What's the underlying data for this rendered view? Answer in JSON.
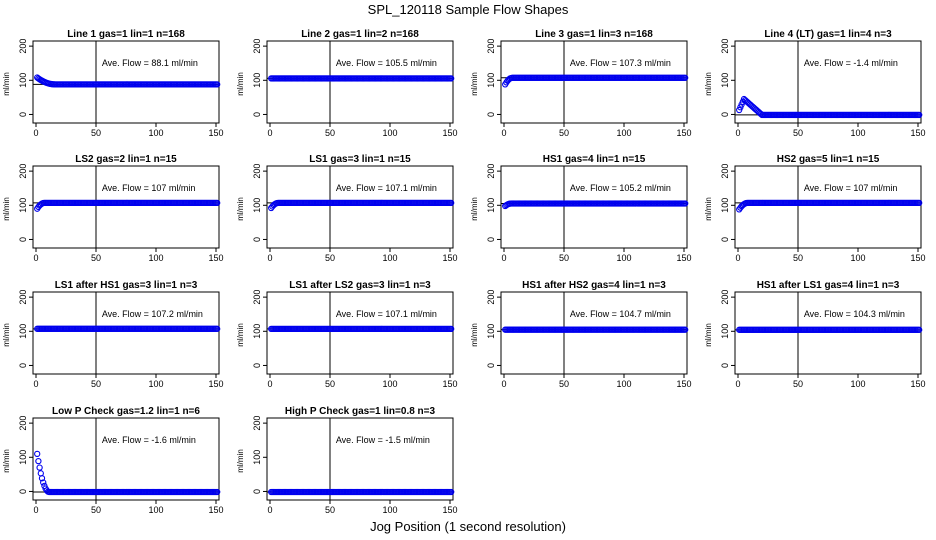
{
  "page": {
    "title": "SPL_120118  Sample Flow Shapes",
    "xlabel": "Jog Position (1 second resolution)"
  },
  "colors": {
    "points": "#0000ee",
    "axes": "#000000"
  },
  "chart_data": [
    {
      "type": "scatter",
      "title": "Line 1 gas=1 lin=1 n=168",
      "ylabel": "ml/min",
      "annotation": "Ave. Flow =  88.1  ml/min",
      "xlim": [
        0,
        150
      ],
      "ylim": [
        0,
        200
      ],
      "xticks": [
        0,
        50,
        100,
        150
      ],
      "yticks": [
        0,
        100,
        200
      ],
      "hline": 88.1,
      "vline": 50,
      "shape": {
        "start": 108,
        "end": 88.1,
        "transition": 15,
        "mode": "decay"
      }
    },
    {
      "type": "scatter",
      "title": "Line 2 gas=1 lin=2 n=168",
      "ylabel": "ml/min",
      "annotation": "Ave. Flow =  105.5  ml/min",
      "xlim": [
        0,
        150
      ],
      "ylim": [
        0,
        200
      ],
      "xticks": [
        0,
        50,
        100,
        150
      ],
      "yticks": [
        0,
        100,
        200
      ],
      "hline": 105.5,
      "vline": 50,
      "shape": {
        "start": 105.5,
        "end": 105.5,
        "transition": 1,
        "mode": "flat"
      }
    },
    {
      "type": "scatter",
      "title": "Line 3 gas=1 lin=3 n=168",
      "ylabel": "ml/min",
      "annotation": "Ave. Flow =  107.3  ml/min",
      "xlim": [
        0,
        150
      ],
      "ylim": [
        0,
        200
      ],
      "xticks": [
        0,
        50,
        100,
        150
      ],
      "yticks": [
        0,
        100,
        200
      ],
      "hline": 107.3,
      "vline": 50,
      "shape": {
        "start": 88,
        "end": 107.3,
        "transition": 6,
        "mode": "rise"
      }
    },
    {
      "type": "scatter",
      "title": "Line 4 (LT) gas=1 lin=4 n=3",
      "ylabel": "ml/min",
      "annotation": "Ave. Flow =  -1.4  ml/min",
      "xlim": [
        0,
        150
      ],
      "ylim": [
        0,
        200
      ],
      "xticks": [
        0,
        50,
        100,
        150
      ],
      "yticks": [
        0,
        100,
        200
      ],
      "hline": -1.4,
      "vline": 50,
      "shape": {
        "start": 5,
        "end": -1.4,
        "transition": 20,
        "mode": "spike",
        "peak": 45
      }
    },
    {
      "type": "scatter",
      "title": "LS2 gas=2 lin=1 n=15",
      "ylabel": "ml/min",
      "annotation": "Ave. Flow =  107  ml/min",
      "xlim": [
        0,
        150
      ],
      "ylim": [
        0,
        200
      ],
      "xticks": [
        0,
        50,
        100,
        150
      ],
      "yticks": [
        0,
        100,
        200
      ],
      "hline": 107,
      "vline": 50,
      "shape": {
        "start": 90,
        "end": 107,
        "transition": 6,
        "mode": "rise"
      }
    },
    {
      "type": "scatter",
      "title": "LS1 gas=3 lin=1 n=15",
      "ylabel": "ml/min",
      "annotation": "Ave. Flow =  107.1  ml/min",
      "xlim": [
        0,
        150
      ],
      "ylim": [
        0,
        200
      ],
      "xticks": [
        0,
        50,
        100,
        150
      ],
      "yticks": [
        0,
        100,
        200
      ],
      "hline": 107.1,
      "vline": 50,
      "shape": {
        "start": 92,
        "end": 107.1,
        "transition": 6,
        "mode": "rise"
      }
    },
    {
      "type": "scatter",
      "title": "HS1 gas=4 lin=1 n=15",
      "ylabel": "ml/min",
      "annotation": "Ave. Flow =  105.2  ml/min",
      "xlim": [
        0,
        150
      ],
      "ylim": [
        0,
        200
      ],
      "xticks": [
        0,
        50,
        100,
        150
      ],
      "yticks": [
        0,
        100,
        200
      ],
      "hline": 105.2,
      "vline": 50,
      "shape": {
        "start": 98,
        "end": 105.2,
        "transition": 5,
        "mode": "rise"
      }
    },
    {
      "type": "scatter",
      "title": "HS2 gas=5 lin=1 n=15",
      "ylabel": "ml/min",
      "annotation": "Ave. Flow =  107  ml/min",
      "xlim": [
        0,
        150
      ],
      "ylim": [
        0,
        200
      ],
      "xticks": [
        0,
        50,
        100,
        150
      ],
      "yticks": [
        0,
        100,
        200
      ],
      "hline": 107,
      "vline": 50,
      "shape": {
        "start": 88,
        "end": 107,
        "transition": 7,
        "mode": "rise"
      }
    },
    {
      "type": "scatter",
      "title": "LS1 after HS1 gas=3 lin=1 n=3",
      "ylabel": "ml/min",
      "annotation": "Ave. Flow =  107.2  ml/min",
      "xlim": [
        0,
        150
      ],
      "ylim": [
        0,
        200
      ],
      "xticks": [
        0,
        50,
        100,
        150
      ],
      "yticks": [
        0,
        100,
        200
      ],
      "hline": 107.2,
      "vline": 50,
      "shape": {
        "start": 107.2,
        "end": 107.2,
        "transition": 1,
        "mode": "flat"
      }
    },
    {
      "type": "scatter",
      "title": "LS1 after LS2 gas=3 lin=1 n=3",
      "ylabel": "ml/min",
      "annotation": "Ave. Flow =  107.1  ml/min",
      "xlim": [
        0,
        150
      ],
      "ylim": [
        0,
        200
      ],
      "xticks": [
        0,
        50,
        100,
        150
      ],
      "yticks": [
        0,
        100,
        200
      ],
      "hline": 107.1,
      "vline": 50,
      "shape": {
        "start": 107.1,
        "end": 107.1,
        "transition": 1,
        "mode": "flat"
      }
    },
    {
      "type": "scatter",
      "title": "HS1 after HS2 gas=4 lin=1 n=3",
      "ylabel": "ml/min",
      "annotation": "Ave. Flow =  104.7  ml/min",
      "xlim": [
        0,
        150
      ],
      "ylim": [
        0,
        200
      ],
      "xticks": [
        0,
        50,
        100,
        150
      ],
      "yticks": [
        0,
        100,
        200
      ],
      "hline": 104.7,
      "vline": 50,
      "shape": {
        "start": 104.7,
        "end": 104.7,
        "transition": 1,
        "mode": "flat"
      }
    },
    {
      "type": "scatter",
      "title": "HS1 after LS1 gas=4 lin=1 n=3",
      "ylabel": "ml/min",
      "annotation": "Ave. Flow =  104.3  ml/min",
      "xlim": [
        0,
        150
      ],
      "ylim": [
        0,
        200
      ],
      "xticks": [
        0,
        50,
        100,
        150
      ],
      "yticks": [
        0,
        100,
        200
      ],
      "hline": 104.3,
      "vline": 50,
      "shape": {
        "start": 104.3,
        "end": 104.3,
        "transition": 1,
        "mode": "flat"
      }
    },
    {
      "type": "scatter",
      "title": "Low P Check gas=1.2 lin=1 n=6",
      "ylabel": "ml/min",
      "annotation": "Ave. Flow =  -1.6  ml/min",
      "xlim": [
        0,
        150
      ],
      "ylim": [
        0,
        200
      ],
      "xticks": [
        0,
        50,
        100,
        150
      ],
      "yticks": [
        0,
        100,
        200
      ],
      "hline": -1.6,
      "vline": 50,
      "shape": {
        "start": 110,
        "end": -1.6,
        "transition": 10,
        "mode": "decay"
      }
    },
    {
      "type": "scatter",
      "title": "High P Check gas=1 lin=0.8 n=3",
      "ylabel": "ml/min",
      "annotation": "Ave. Flow =  -1.5  ml/min",
      "xlim": [
        0,
        150
      ],
      "ylim": [
        0,
        200
      ],
      "xticks": [
        0,
        50,
        100,
        150
      ],
      "yticks": [
        0,
        100,
        200
      ],
      "hline": -1.5,
      "vline": 50,
      "shape": {
        "start": -1.5,
        "end": -1.5,
        "transition": 1,
        "mode": "flat"
      }
    }
  ]
}
